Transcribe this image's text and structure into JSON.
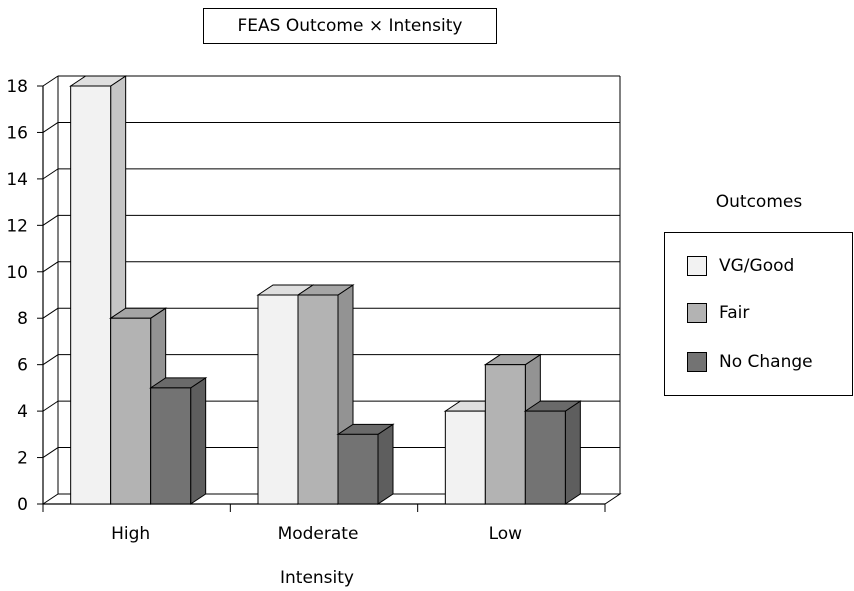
{
  "chart_data": {
    "type": "bar",
    "title": "FEAS Outcome × Intensity",
    "xlabel": "Intensity",
    "ylabel": "",
    "categories": [
      "High",
      "Moderate",
      "Low"
    ],
    "series": [
      {
        "name": "VG/Good",
        "values": [
          18,
          9,
          4
        ],
        "color": "#f2f2f2"
      },
      {
        "name": "Fair",
        "values": [
          8,
          9,
          6
        ],
        "color": "#b3b3b3"
      },
      {
        "name": "No Change",
        "values": [
          5,
          3,
          4
        ],
        "color": "#737373"
      }
    ],
    "ylim": [
      0,
      18
    ],
    "yticks": [
      "0",
      "2",
      "4",
      "6",
      "8",
      "10",
      "12",
      "14",
      "16",
      "18"
    ],
    "grid": true,
    "legend_title": "Outcomes",
    "legend_position": "right"
  }
}
